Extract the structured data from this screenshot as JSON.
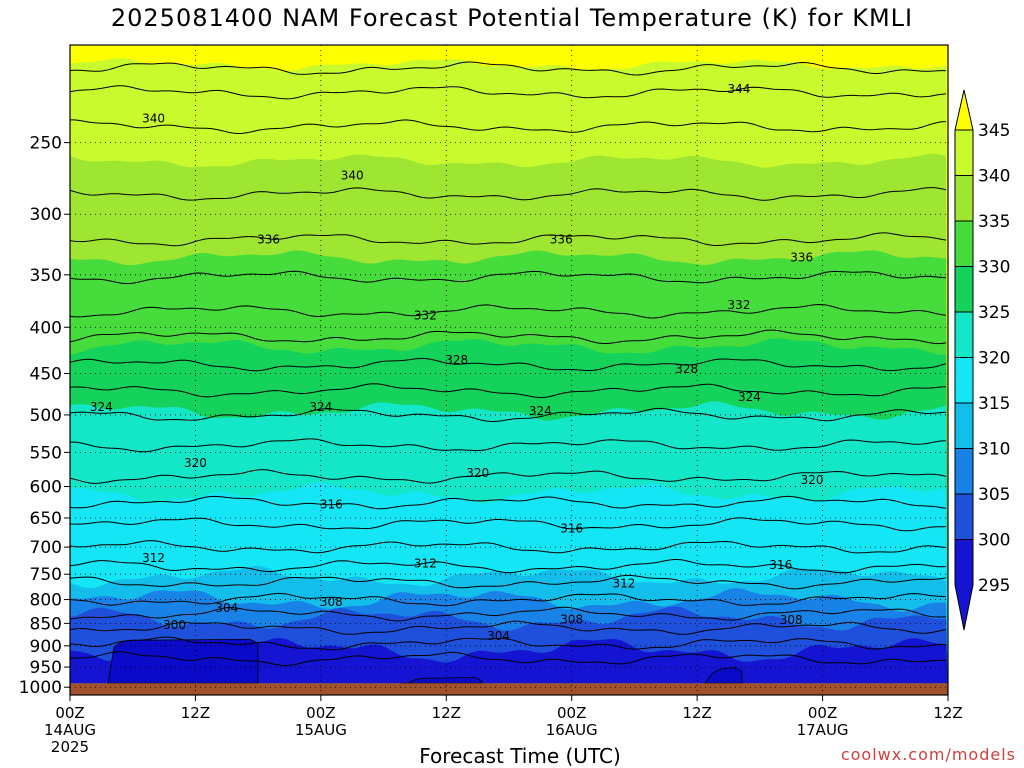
{
  "title": "2025081400 NAM Forecast Potential Temperature (K) for KMLI",
  "credit": "coolwx.com/models",
  "chart_data": {
    "type": "heatmap",
    "title": "2025081400 NAM Forecast Potential Temperature (K) for KMLI",
    "xlabel": "Forecast Time (UTC)",
    "ylabel": "",
    "x_hours": [
      0,
      84
    ],
    "x_ticks": [
      {
        "hour": 0,
        "label": "00Z",
        "date": "14AUG",
        "year": "2025"
      },
      {
        "hour": 12,
        "label": "12Z"
      },
      {
        "hour": 24,
        "label": "00Z",
        "date": "15AUG"
      },
      {
        "hour": 36,
        "label": "12Z"
      },
      {
        "hour": 48,
        "label": "00Z",
        "date": "16AUG"
      },
      {
        "hour": 60,
        "label": "12Z"
      },
      {
        "hour": 72,
        "label": "00Z",
        "date": "17AUG"
      },
      {
        "hour": 84,
        "label": "12Z"
      }
    ],
    "y_ticks": [
      250,
      300,
      350,
      400,
      450,
      500,
      550,
      600,
      650,
      700,
      750,
      800,
      850,
      900,
      950,
      1000
    ],
    "y_range": [
      195,
      1020
    ],
    "colorbar": {
      "labels": [
        345,
        340,
        335,
        330,
        325,
        320,
        315,
        310,
        305,
        300,
        295
      ],
      "bands": [
        {
          "min": 340,
          "max": 345,
          "color": "#c8fa2d"
        },
        {
          "min": 335,
          "max": 340,
          "color": "#9ee632"
        },
        {
          "min": 330,
          "max": 335,
          "color": "#46dc3c"
        },
        {
          "min": 325,
          "max": 330,
          "color": "#14d25a"
        },
        {
          "min": 320,
          "max": 325,
          "color": "#14e6c8"
        },
        {
          "min": 315,
          "max": 320,
          "color": "#14e6f5"
        },
        {
          "min": 310,
          "max": 315,
          "color": "#14beeb"
        },
        {
          "min": 305,
          "max": 310,
          "color": "#1982e6"
        },
        {
          "min": 300,
          "max": 305,
          "color": "#1e50dc"
        },
        {
          "min": 295,
          "max": 300,
          "color": "#1414d2"
        }
      ],
      "over_color": "#ffff00",
      "under_color": "#1414d2"
    },
    "ground_color": "#a0522d",
    "contours": [
      {
        "theta": 344,
        "pressure": 207
      },
      {
        "theta": 342,
        "pressure": 220
      },
      {
        "theta": 340,
        "pressure": 240
      },
      {
        "theta": 338,
        "pressure": 285
      },
      {
        "theta": 336,
        "pressure": 320
      },
      {
        "theta": 334,
        "pressure": 352
      },
      {
        "theta": 332,
        "pressure": 384
      },
      {
        "theta": 330,
        "pressure": 410
      },
      {
        "theta": 328,
        "pressure": 440
      },
      {
        "theta": 326,
        "pressure": 470
      },
      {
        "theta": 324,
        "pressure": 500
      },
      {
        "theta": 322,
        "pressure": 540
      },
      {
        "theta": 320,
        "pressure": 585
      },
      {
        "theta": 318,
        "pressure": 625
      },
      {
        "theta": 316,
        "pressure": 660
      },
      {
        "theta": 314,
        "pressure": 700
      },
      {
        "theta": 312,
        "pressure": 735
      },
      {
        "theta": 310,
        "pressure": 765
      },
      {
        "theta": 308,
        "pressure": 800
      },
      {
        "theta": 306,
        "pressure": 830
      },
      {
        "theta": 304,
        "pressure": 860
      },
      {
        "theta": 302,
        "pressure": 895
      },
      {
        "theta": 300,
        "pressure": 930
      }
    ],
    "contour_labels": [
      {
        "text": "340",
        "hour": 8,
        "pressure": 235
      },
      {
        "text": "344",
        "hour": 64,
        "pressure": 218
      },
      {
        "text": "340",
        "hour": 27,
        "pressure": 272
      },
      {
        "text": "336",
        "hour": 19,
        "pressure": 320
      },
      {
        "text": "336",
        "hour": 47,
        "pressure": 320
      },
      {
        "text": "336",
        "hour": 70,
        "pressure": 335
      },
      {
        "text": "332",
        "hour": 34,
        "pressure": 388
      },
      {
        "text": "332",
        "hour": 64,
        "pressure": 378
      },
      {
        "text": "328",
        "hour": 37,
        "pressure": 435
      },
      {
        "text": "328",
        "hour": 59,
        "pressure": 445
      },
      {
        "text": "324",
        "hour": 3,
        "pressure": 490
      },
      {
        "text": "324",
        "hour": 24,
        "pressure": 490
      },
      {
        "text": "324",
        "hour": 45,
        "pressure": 495
      },
      {
        "text": "324",
        "hour": 65,
        "pressure": 478
      },
      {
        "text": "320",
        "hour": 12,
        "pressure": 565
      },
      {
        "text": "320",
        "hour": 39,
        "pressure": 580
      },
      {
        "text": "320",
        "hour": 71,
        "pressure": 590
      },
      {
        "text": "316",
        "hour": 25,
        "pressure": 628
      },
      {
        "text": "316",
        "hour": 48,
        "pressure": 668
      },
      {
        "text": "316",
        "hour": 68,
        "pressure": 733
      },
      {
        "text": "312",
        "hour": 8,
        "pressure": 720
      },
      {
        "text": "312",
        "hour": 34,
        "pressure": 730
      },
      {
        "text": "312",
        "hour": 53,
        "pressure": 768
      },
      {
        "text": "308",
        "hour": 25,
        "pressure": 805
      },
      {
        "text": "308",
        "hour": 48,
        "pressure": 842
      },
      {
        "text": "308",
        "hour": 69,
        "pressure": 843
      },
      {
        "text": "304",
        "hour": 15,
        "pressure": 817
      },
      {
        "text": "304",
        "hour": 41,
        "pressure": 878
      },
      {
        "text": "300",
        "hour": 10,
        "pressure": 853
      }
    ]
  }
}
